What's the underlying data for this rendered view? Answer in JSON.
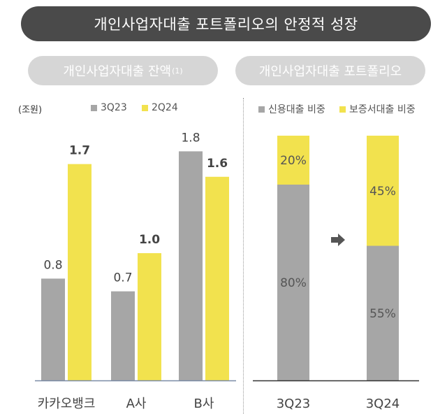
{
  "header": {
    "title": "개인사업자대출 포트폴리오의 안정적 성장"
  },
  "colors": {
    "gray": "#a6a6a6",
    "yellow": "#f2e24e",
    "axis": "#7a8aa6",
    "dark": "#333333"
  },
  "left_panel": {
    "title": "개인사업자대출 잔액",
    "footnote": "(1)",
    "unit": "(조원)"
  },
  "right_panel": {
    "title": "개인사업자대출 포트폴리오"
  },
  "chart_data": [
    {
      "type": "bar",
      "title": "개인사업자대출 잔액",
      "ylabel": "(조원)",
      "categories": [
        "카카오뱅크",
        "A사",
        "B사"
      ],
      "series": [
        {
          "name": "3Q23",
          "color": "#a6a6a6",
          "values": [
            0.8,
            0.7,
            1.8
          ]
        },
        {
          "name": "2Q24",
          "color": "#f2e24e",
          "values": [
            1.7,
            1.0,
            1.6
          ]
        }
      ],
      "ylim": [
        0,
        2.0
      ],
      "legend": "top",
      "grid": false
    },
    {
      "type": "bar",
      "stacked": true,
      "title": "개인사업자대출 포트폴리오",
      "categories": [
        "3Q23",
        "3Q24"
      ],
      "series": [
        {
          "name": "신용대출 비중",
          "color": "#a6a6a6",
          "values": [
            80,
            55
          ],
          "labels": [
            "80%",
            "55%"
          ]
        },
        {
          "name": "보증서대출 비중",
          "color": "#f2e24e",
          "values": [
            20,
            45
          ],
          "labels": [
            "20%",
            "45%"
          ]
        }
      ],
      "ylim": [
        0,
        100
      ],
      "legend": "top",
      "grid": false,
      "arrow": "arrow-right-icon"
    }
  ]
}
